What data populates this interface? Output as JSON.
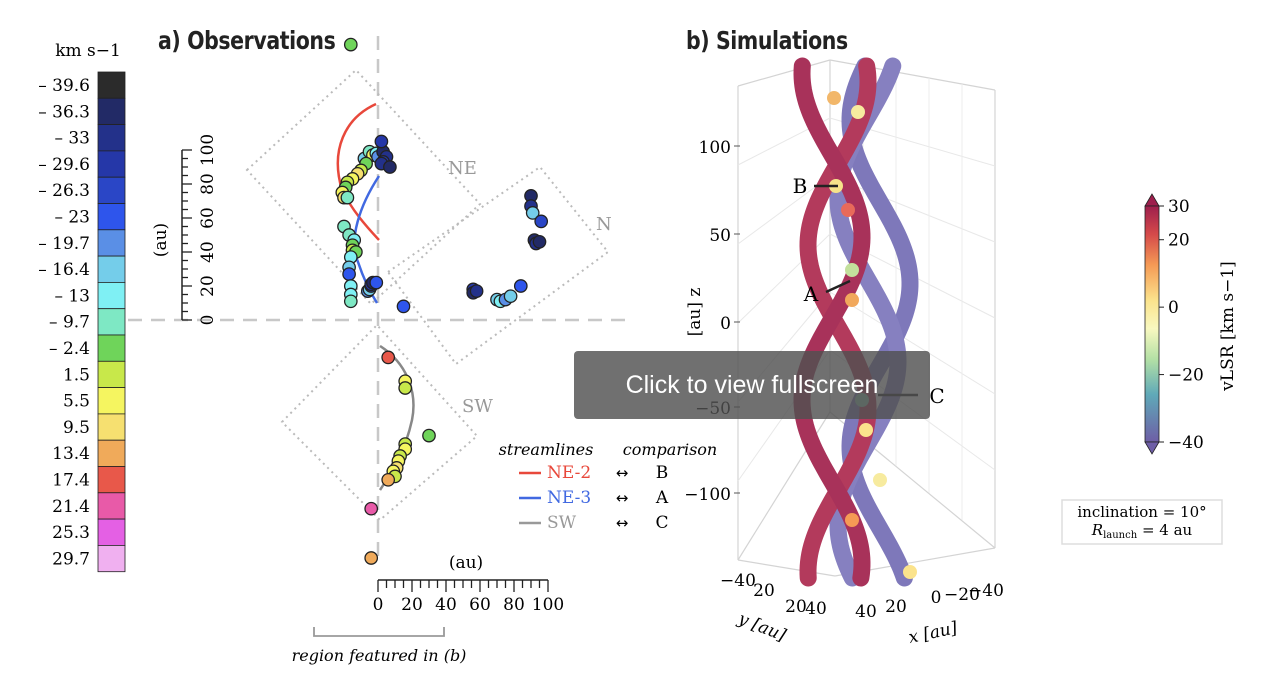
{
  "overlay": {
    "label": "Click to view fullscreen"
  },
  "panel_a": {
    "title": "a) Observations"
  },
  "panel_b": {
    "title": "b) Simulations"
  },
  "colors": {
    "ne2": "#e8483b",
    "ne3": "#4169e1",
    "sw": "#888888",
    "dashed": "#c8c8c8",
    "dotted": "#bbbbbb"
  },
  "chart_data": [
    {
      "type": "scatter",
      "name": "observations",
      "title": "a) Observations",
      "y_axis": {
        "label": "(au)",
        "ticks": [
          "0",
          "20",
          "40",
          "60",
          "80",
          "100"
        ]
      },
      "x_axis": {
        "label": "(au)",
        "ticks": [
          "0",
          "20",
          "40",
          "60",
          "80",
          "100"
        ]
      },
      "regions": [
        "NE",
        "N",
        "SW"
      ],
      "region_bracket_label": "region featured in (b)",
      "colorbar": {
        "unit": "km s−1",
        "labels": [
          "– 39.6",
          "– 36.3",
          "– 33",
          "– 29.6",
          "– 26.3",
          "– 23",
          "– 19.7",
          "– 16.4",
          "– 13",
          "– 9.7",
          "– 2.4",
          "1.5",
          "5.5",
          "9.5",
          "13.4",
          "17.4",
          "21.4",
          "25.3",
          "29.7"
        ],
        "colors": [
          "#2b2b2b",
          "#222a66",
          "#23318a",
          "#2537a8",
          "#2a46c6",
          "#2e55ec",
          "#5a8fe6",
          "#74cdea",
          "#7ff0f4",
          "#7ee8c4",
          "#6fd45a",
          "#c8e84a",
          "#f5f560",
          "#f6e070",
          "#f0aa5a",
          "#e8584a",
          "#e85aa8",
          "#e460e4",
          "#f0b0f0"
        ]
      },
      "legend": {
        "header_left": "streamlines",
        "header_right": "comparison",
        "entries": [
          {
            "name": "NE-2",
            "arrow": "↔",
            "compare": "B",
            "color": "#e8483b"
          },
          {
            "name": "NE-3",
            "arrow": "↔",
            "compare": "A",
            "color": "#4169e1"
          },
          {
            "name": "SW",
            "arrow": "↔",
            "compare": "C",
            "color": "#999999"
          }
        ]
      },
      "points_ne": [
        {
          "x": -8,
          "y": 95,
          "c": 7
        },
        {
          "x": -5,
          "y": 99,
          "c": 9
        },
        {
          "x": -3,
          "y": 97,
          "c": 12
        },
        {
          "x": -1,
          "y": 98,
          "c": 8
        },
        {
          "x": 0,
          "y": 96,
          "c": 6
        },
        {
          "x": -7,
          "y": 92,
          "c": 10
        },
        {
          "x": -10,
          "y": 88,
          "c": 11
        },
        {
          "x": -12,
          "y": 86,
          "c": 13
        },
        {
          "x": -15,
          "y": 83,
          "c": 12
        },
        {
          "x": -18,
          "y": 81,
          "c": 11
        },
        {
          "x": -19,
          "y": 78,
          "c": 10
        },
        {
          "x": -21,
          "y": 75,
          "c": 12
        },
        {
          "x": -20,
          "y": 72,
          "c": 13
        },
        {
          "x": -18,
          "y": 72,
          "c": 9
        },
        {
          "x": 3,
          "y": 99,
          "c": 1
        },
        {
          "x": 5,
          "y": 96,
          "c": 2
        },
        {
          "x": 3,
          "y": 93,
          "c": 3
        },
        {
          "x": 2,
          "y": 92,
          "c": 2
        },
        {
          "x": 7,
          "y": 90,
          "c": 1
        },
        {
          "x": 2,
          "y": 105,
          "c": 3
        },
        {
          "x": -20,
          "y": 55,
          "c": 9
        },
        {
          "x": -17,
          "y": 50,
          "c": 9
        },
        {
          "x": -14,
          "y": 47,
          "c": 8
        },
        {
          "x": -15,
          "y": 44,
          "c": 10
        },
        {
          "x": -15,
          "y": 41,
          "c": 11
        },
        {
          "x": -13,
          "y": 40,
          "c": 10
        },
        {
          "x": -16,
          "y": 37,
          "c": 8
        },
        {
          "x": -17,
          "y": 31,
          "c": 7
        },
        {
          "x": -17,
          "y": 27,
          "c": 5
        },
        {
          "x": -16,
          "y": 20,
          "c": 8
        },
        {
          "x": -16,
          "y": 15,
          "c": 8
        },
        {
          "x": -16,
          "y": 11,
          "c": 9
        },
        {
          "x": -6,
          "y": 17,
          "c": 6
        },
        {
          "x": -5,
          "y": 18,
          "c": 7
        },
        {
          "x": -4,
          "y": 20,
          "c": 4
        },
        {
          "x": -4,
          "y": 21,
          "c": 3
        },
        {
          "x": -3,
          "y": 22,
          "c": 1
        },
        {
          "x": -1,
          "y": 22,
          "c": 5
        },
        {
          "x": 15,
          "y": 8,
          "c": 5
        },
        {
          "x": -16,
          "y": 162,
          "c": 10
        }
      ],
      "points_n": [
        {
          "x": 90,
          "y": 73,
          "c": 1
        },
        {
          "x": 90,
          "y": 67,
          "c": 2
        },
        {
          "x": 91,
          "y": 63,
          "c": 7
        },
        {
          "x": 96,
          "y": 58,
          "c": 4
        },
        {
          "x": 92,
          "y": 47,
          "c": 1
        },
        {
          "x": 93,
          "y": 45,
          "c": 2
        },
        {
          "x": 95,
          "y": 46,
          "c": 1
        },
        {
          "x": 56,
          "y": 18,
          "c": 3
        },
        {
          "x": 56,
          "y": 16,
          "c": 1
        },
        {
          "x": 58,
          "y": 17,
          "c": 2
        },
        {
          "x": 70,
          "y": 12,
          "c": 7
        },
        {
          "x": 72,
          "y": 11,
          "c": 8
        },
        {
          "x": 75,
          "y": 12,
          "c": 6
        },
        {
          "x": 78,
          "y": 14,
          "c": 7
        },
        {
          "x": 84,
          "y": 20,
          "c": 5
        }
      ],
      "points_sw": [
        {
          "x": 6,
          "y": -22,
          "c": 15
        },
        {
          "x": 16,
          "y": -36,
          "c": 12
        },
        {
          "x": 16,
          "y": -40,
          "c": 11
        },
        {
          "x": 30,
          "y": -68,
          "c": 10
        },
        {
          "x": 16,
          "y": -73,
          "c": 11
        },
        {
          "x": 16,
          "y": -76,
          "c": 12
        },
        {
          "x": 13,
          "y": -80,
          "c": 11
        },
        {
          "x": 12,
          "y": -83,
          "c": 12
        },
        {
          "x": 11,
          "y": -87,
          "c": 13
        },
        {
          "x": 9,
          "y": -89,
          "c": 12
        },
        {
          "x": 10,
          "y": -92,
          "c": 11
        },
        {
          "x": 6,
          "y": -94,
          "c": 14
        },
        {
          "x": -4,
          "y": -111,
          "c": 16
        },
        {
          "x": -4,
          "y": -140,
          "c": 14
        }
      ]
    },
    {
      "type": "3d-streamlines",
      "name": "simulations",
      "title": "b) Simulations",
      "z_axis": {
        "label": "[au] z",
        "ticks": [
          "100",
          "50",
          "0",
          "−50",
          "−100"
        ]
      },
      "y_axis": {
        "label": "y [au]",
        "ticks": [
          "−40",
          "20",
          "20",
          "40"
        ]
      },
      "x_axis": {
        "label": "x [au]",
        "ticks": [
          "40",
          "20",
          "0",
          "−20",
          "−40"
        ]
      },
      "markers": [
        "A",
        "B",
        "C"
      ],
      "colorbar": {
        "label": "vLSR [km s−1]",
        "ticks": [
          "30",
          "20",
          "0",
          "−20",
          "−40"
        ],
        "range": [
          -40,
          30
        ]
      },
      "info_box": {
        "line1": "inclination = 10°",
        "line2_a": "R",
        "line2_sub": "launch",
        "line2_b": " = 4 au"
      }
    }
  ]
}
